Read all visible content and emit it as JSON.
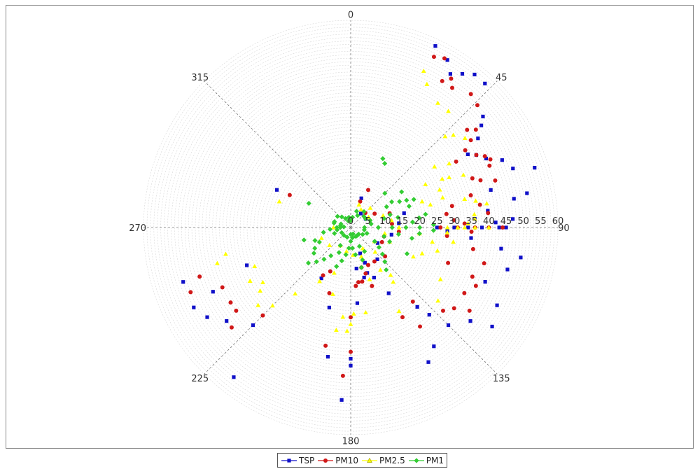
{
  "chart_data": {
    "type": "scatter",
    "coordinate_system": "polar",
    "angle_unit": "degrees",
    "angle_direction": "clockwise, 0 at top",
    "angle_ticks": [
      "0",
      "45",
      "90",
      "135",
      "180",
      "225",
      "270",
      "315"
    ],
    "radius_ticks": [
      "0",
      "5",
      "10",
      "15",
      "20",
      "25",
      "30",
      "35",
      "40",
      "45",
      "50",
      "55",
      "60"
    ],
    "radius_range": [
      0,
      60
    ],
    "grid": true,
    "legend_position": "bottom",
    "series": [
      {
        "name": "TSP",
        "color": "#1010c8",
        "marker": "square",
        "points": [
          [
            25,
            58
          ],
          [
            30,
            56
          ],
          [
            33,
            53
          ],
          [
            36,
            55
          ],
          [
            39,
            57
          ],
          [
            43,
            57
          ],
          [
            50,
            50
          ],
          [
            52,
            48
          ],
          [
            55,
            45
          ],
          [
            58,
            40
          ],
          [
            60,
            42
          ],
          [
            63,
            44
          ],
          [
            66,
            48
          ],
          [
            70,
            50
          ],
          [
            72,
            56
          ],
          [
            75,
            42
          ],
          [
            79,
            52
          ],
          [
            80,
            48
          ],
          [
            83,
            40
          ],
          [
            86,
            36
          ],
          [
            87,
            47
          ],
          [
            88,
            42
          ],
          [
            90,
            25
          ],
          [
            90,
            30
          ],
          [
            90,
            34
          ],
          [
            90,
            38
          ],
          [
            90,
            43
          ],
          [
            90,
            45
          ],
          [
            92,
            28
          ],
          [
            95,
            35
          ],
          [
            98,
            44
          ],
          [
            100,
            50
          ],
          [
            105,
            47
          ],
          [
            112,
            42
          ],
          [
            118,
            48
          ],
          [
            125,
            50
          ],
          [
            128,
            44
          ],
          [
            135,
            40
          ],
          [
            138,
            34
          ],
          [
            140,
            30
          ],
          [
            145,
            42
          ],
          [
            150,
            22
          ],
          [
            150,
            45
          ],
          [
            155,
            16
          ],
          [
            158,
            11
          ],
          [
            160,
            14
          ],
          [
            165,
            15
          ],
          [
            172,
            12
          ],
          [
            175,
            22
          ],
          [
            180,
            38
          ],
          [
            180,
            40
          ],
          [
            183,
            50
          ],
          [
            190,
            38
          ],
          [
            195,
            24
          ],
          [
            210,
            17
          ],
          [
            218,
            55
          ],
          [
            225,
            40
          ],
          [
            233,
            45
          ],
          [
            238,
            49
          ],
          [
            243,
            51
          ],
          [
            245,
            44
          ],
          [
            250,
            32
          ],
          [
            252,
            51
          ],
          [
            297,
            24
          ],
          [
            20,
            9
          ],
          [
            36,
            5
          ],
          [
            60,
            5
          ],
          [
            75,
            16
          ],
          [
            85,
            14
          ],
          [
            100,
            12
          ],
          [
            120,
            9
          ],
          [
            140,
            12
          ],
          [
            160,
            8
          ]
        ]
      },
      {
        "name": "PM10",
        "color": "#d01818",
        "marker": "circle",
        "points": [
          [
            26,
            55
          ],
          [
            29,
            56
          ],
          [
            32,
            50
          ],
          [
            34,
            52
          ],
          [
            36,
            50
          ],
          [
            42,
            52
          ],
          [
            46,
            51
          ],
          [
            50,
            44
          ],
          [
            52,
            46
          ],
          [
            54,
            43
          ],
          [
            56,
            40
          ],
          [
            58,
            36
          ],
          [
            60,
            42
          ],
          [
            62,
            44
          ],
          [
            64,
            45
          ],
          [
            66,
            44
          ],
          [
            68,
            38
          ],
          [
            70,
            40
          ],
          [
            72,
            44
          ],
          [
            75,
            36
          ],
          [
            78,
            30
          ],
          [
            80,
            38
          ],
          [
            82,
            28
          ],
          [
            84,
            40
          ],
          [
            86,
            30
          ],
          [
            88,
            33
          ],
          [
            90,
            26
          ],
          [
            90,
            31
          ],
          [
            90,
            36
          ],
          [
            90,
            40
          ],
          [
            90,
            44
          ],
          [
            92,
            35
          ],
          [
            95,
            28
          ],
          [
            100,
            36
          ],
          [
            105,
            40
          ],
          [
            110,
            30
          ],
          [
            112,
            38
          ],
          [
            115,
            40
          ],
          [
            120,
            38
          ],
          [
            125,
            42
          ],
          [
            128,
            38
          ],
          [
            132,
            36
          ],
          [
            140,
            28
          ],
          [
            145,
            35
          ],
          [
            150,
            30
          ],
          [
            155,
            12
          ],
          [
            160,
            18
          ],
          [
            162,
            14
          ],
          [
            165,
            12
          ],
          [
            168,
            16
          ],
          [
            172,
            16
          ],
          [
            175,
            17
          ],
          [
            180,
            26
          ],
          [
            180,
            36
          ],
          [
            183,
            43
          ],
          [
            192,
            35
          ],
          [
            198,
            20
          ],
          [
            205,
            14
          ],
          [
            210,
            16
          ],
          [
            225,
            36
          ],
          [
            230,
            45
          ],
          [
            234,
            41
          ],
          [
            238,
            41
          ],
          [
            245,
            41
          ],
          [
            248,
            50
          ],
          [
            252,
            46
          ],
          [
            298,
            20
          ],
          [
            20,
            8
          ],
          [
            25,
            12
          ],
          [
            45,
            6
          ],
          [
            60,
            8
          ],
          [
            70,
            12
          ],
          [
            85,
            12
          ],
          [
            95,
            14
          ],
          [
            105,
            10
          ],
          [
            115,
            10
          ],
          [
            130,
            13
          ],
          [
            145,
            12
          ]
        ]
      },
      {
        "name": "PM2.5",
        "color": "#ffff00",
        "marker": "triangle",
        "points": [
          [
            25,
            50
          ],
          [
            28,
            47
          ],
          [
            35,
            44
          ],
          [
            40,
            44
          ],
          [
            46,
            38
          ],
          [
            48,
            40
          ],
          [
            52,
            42
          ],
          [
            54,
            30
          ],
          [
            57,
            34
          ],
          [
            60,
            25
          ],
          [
            62,
            30
          ],
          [
            63,
            32
          ],
          [
            65,
            36
          ],
          [
            67,
            28
          ],
          [
            70,
            22
          ],
          [
            72,
            28
          ],
          [
            74,
            24
          ],
          [
            76,
            34
          ],
          [
            78,
            37
          ],
          [
            80,
            40
          ],
          [
            84,
            36
          ],
          [
            86,
            36
          ],
          [
            88,
            34
          ],
          [
            90,
            28
          ],
          [
            90,
            31
          ],
          [
            90,
            33
          ],
          [
            90,
            36
          ],
          [
            90,
            40
          ],
          [
            93,
            28
          ],
          [
            95,
            20
          ],
          [
            98,
            30
          ],
          [
            100,
            24
          ],
          [
            105,
            26
          ],
          [
            110,
            22
          ],
          [
            115,
            20
          ],
          [
            120,
            30
          ],
          [
            130,
            33
          ],
          [
            140,
            18
          ],
          [
            142,
            20
          ],
          [
            145,
            15
          ],
          [
            150,
            28
          ],
          [
            160,
            16
          ],
          [
            170,
            25
          ],
          [
            178,
            25
          ],
          [
            180,
            28
          ],
          [
            182,
            30
          ],
          [
            185,
            26
          ],
          [
            188,
            30
          ],
          [
            195,
            20
          ],
          [
            200,
            14
          ],
          [
            210,
            18
          ],
          [
            220,
            25
          ],
          [
            225,
            32
          ],
          [
            230,
            35
          ],
          [
            235,
            32
          ],
          [
            238,
            30
          ],
          [
            242,
            33
          ],
          [
            248,
            30
          ],
          [
            255,
            40
          ],
          [
            258,
            37
          ],
          [
            290,
            22
          ],
          [
            20,
            7
          ],
          [
            30,
            6
          ],
          [
            45,
            8
          ],
          [
            60,
            6
          ],
          [
            70,
            10
          ],
          [
            80,
            12
          ],
          [
            90,
            14
          ],
          [
            100,
            10
          ],
          [
            110,
            12
          ],
          [
            120,
            8
          ],
          [
            135,
            10
          ],
          [
            150,
            7
          ],
          [
            160,
            9
          ],
          [
            175,
            8
          ],
          [
            190,
            7
          ],
          [
            210,
            6
          ],
          [
            230,
            8
          ],
          [
            250,
            9
          ],
          [
            270,
            5
          ]
        ]
      },
      {
        "name": "PM1",
        "color": "#33cc33",
        "marker": "diamond",
        "points": [
          [
            25,
            22
          ],
          [
            28,
            21
          ],
          [
            45,
            14
          ],
          [
            55,
            18
          ],
          [
            58,
            14
          ],
          [
            60,
            12
          ],
          [
            62,
            16
          ],
          [
            64,
            18
          ],
          [
            66,
            20
          ],
          [
            70,
            18
          ],
          [
            72,
            12
          ],
          [
            75,
            10
          ],
          [
            78,
            14
          ],
          [
            80,
            22
          ],
          [
            82,
            20
          ],
          [
            85,
            18
          ],
          [
            88,
            24
          ],
          [
            90,
            4
          ],
          [
            90,
            8
          ],
          [
            90,
            12
          ],
          [
            90,
            16
          ],
          [
            90,
            20
          ],
          [
            92,
            24
          ],
          [
            95,
            20
          ],
          [
            98,
            14
          ],
          [
            100,
            18
          ],
          [
            105,
            10
          ],
          [
            110,
            12
          ],
          [
            115,
            18
          ],
          [
            120,
            8
          ],
          [
            125,
            10
          ],
          [
            130,
            12
          ],
          [
            135,
            14
          ],
          [
            140,
            16
          ],
          [
            150,
            8
          ],
          [
            155,
            6
          ],
          [
            160,
            10
          ],
          [
            165,
            12
          ],
          [
            170,
            8
          ],
          [
            175,
            6
          ],
          [
            180,
            4
          ],
          [
            185,
            6
          ],
          [
            190,
            8
          ],
          [
            195,
            10
          ],
          [
            200,
            12
          ],
          [
            205,
            8
          ],
          [
            210,
            6
          ],
          [
            215,
            10
          ],
          [
            220,
            12
          ],
          [
            225,
            14
          ],
          [
            230,
            16
          ],
          [
            235,
            13
          ],
          [
            240,
            12
          ],
          [
            245,
            10
          ],
          [
            250,
            11
          ],
          [
            255,
            14
          ],
          [
            260,
            8
          ],
          [
            265,
            6
          ],
          [
            270,
            4
          ],
          [
            275,
            2
          ],
          [
            280,
            3
          ],
          [
            285,
            5
          ],
          [
            290,
            3
          ],
          [
            300,
            14
          ],
          [
            310,
            5
          ],
          [
            320,
            4
          ],
          [
            330,
            3
          ],
          [
            340,
            2
          ],
          [
            350,
            3
          ],
          [
            0,
            2
          ],
          [
            10,
            3
          ],
          [
            20,
            5
          ],
          [
            30,
            4
          ],
          [
            40,
            6
          ],
          [
            50,
            5
          ],
          [
            60,
            5
          ],
          [
            70,
            6
          ],
          [
            80,
            6
          ],
          [
            100,
            4
          ],
          [
            110,
            5
          ],
          [
            120,
            4
          ],
          [
            130,
            3
          ],
          [
            140,
            3
          ],
          [
            150,
            3
          ],
          [
            160,
            2
          ],
          [
            170,
            3
          ],
          [
            180,
            2
          ],
          [
            200,
            3
          ],
          [
            220,
            3
          ],
          [
            240,
            3
          ],
          [
            250,
            5
          ],
          [
            260,
            4
          ],
          [
            270,
            3
          ],
          [
            290,
            5
          ]
        ]
      }
    ]
  }
}
